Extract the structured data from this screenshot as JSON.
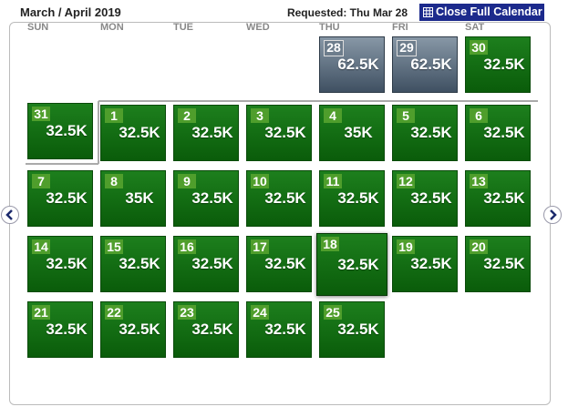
{
  "header": {
    "title": "March / April 2019",
    "requested": "Requested: Thu Mar 28",
    "close_button": "Close Full Calendar"
  },
  "weekdays": [
    "SUN",
    "MON",
    "TUE",
    "WED",
    "THU",
    "FRI",
    "SAT"
  ],
  "weeks": [
    [
      null,
      null,
      null,
      null,
      {
        "day": "28",
        "price": "62.5K",
        "status": "unavailable"
      },
      {
        "day": "29",
        "price": "62.5K",
        "status": "unavailable"
      },
      {
        "day": "30",
        "price": "32.5K",
        "status": "available"
      }
    ],
    [
      {
        "day": "31",
        "price": "32.5K",
        "status": "available"
      },
      {
        "day": "1",
        "price": "32.5K",
        "status": "available"
      },
      {
        "day": "2",
        "price": "32.5K",
        "status": "available"
      },
      {
        "day": "3",
        "price": "32.5K",
        "status": "available"
      },
      {
        "day": "4",
        "price": "35K",
        "status": "available"
      },
      {
        "day": "5",
        "price": "32.5K",
        "status": "available"
      },
      {
        "day": "6",
        "price": "32.5K",
        "status": "available"
      }
    ],
    [
      {
        "day": "7",
        "price": "32.5K",
        "status": "available"
      },
      {
        "day": "8",
        "price": "35K",
        "status": "available"
      },
      {
        "day": "9",
        "price": "32.5K",
        "status": "available"
      },
      {
        "day": "10",
        "price": "32.5K",
        "status": "available"
      },
      {
        "day": "11",
        "price": "32.5K",
        "status": "available"
      },
      {
        "day": "12",
        "price": "32.5K",
        "status": "available"
      },
      {
        "day": "13",
        "price": "32.5K",
        "status": "available"
      }
    ],
    [
      {
        "day": "14",
        "price": "32.5K",
        "status": "available"
      },
      {
        "day": "15",
        "price": "32.5K",
        "status": "available"
      },
      {
        "day": "16",
        "price": "32.5K",
        "status": "available"
      },
      {
        "day": "17",
        "price": "32.5K",
        "status": "available"
      },
      {
        "day": "18",
        "price": "32.5K",
        "status": "selected"
      },
      {
        "day": "19",
        "price": "32.5K",
        "status": "available"
      },
      {
        "day": "20",
        "price": "32.5K",
        "status": "available"
      }
    ],
    [
      {
        "day": "21",
        "price": "32.5K",
        "status": "available"
      },
      {
        "day": "22",
        "price": "32.5K",
        "status": "available"
      },
      {
        "day": "23",
        "price": "32.5K",
        "status": "available"
      },
      {
        "day": "24",
        "price": "32.5K",
        "status": "available"
      },
      {
        "day": "25",
        "price": "32.5K",
        "status": "available"
      },
      null,
      null
    ]
  ]
}
